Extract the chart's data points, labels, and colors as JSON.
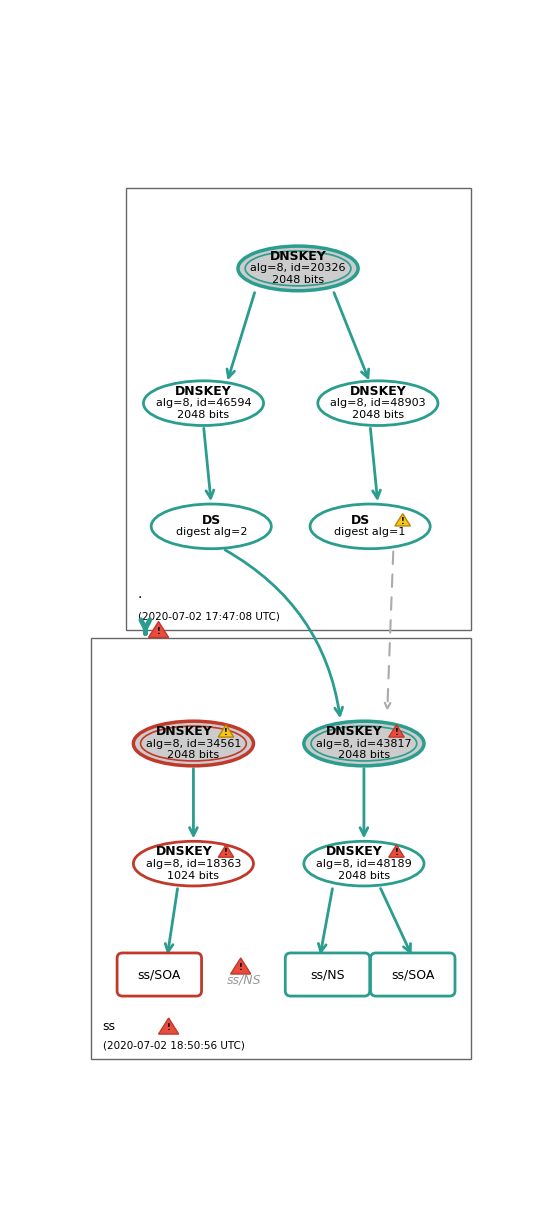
{
  "teal": "#2A9D8F",
  "red": "#c0392b",
  "gray_fill": "#cccccc",
  "fig_w": 5.43,
  "fig_h": 12.23,
  "dpi": 100,
  "top_zone_label": "(2020-07-02 17:47:08 UTC)",
  "bot_zone_label": "ss",
  "bot_zone_time": "(2020-07-02 18:50:56 UTC)"
}
